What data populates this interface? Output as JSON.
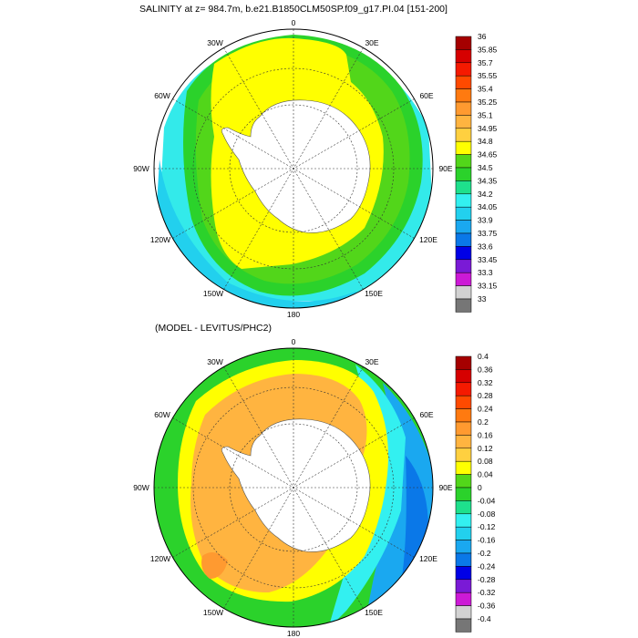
{
  "panels": [
    {
      "title": "SALINITY at z= 984.7m, b.e21.B1850CLM50SP.f09_g17.PI.04 [151-200]",
      "lon_labels": [
        "0",
        "30E",
        "60E",
        "90E",
        "120E",
        "150E",
        "180",
        "150W",
        "120W",
        "90W",
        "60W",
        "30W"
      ],
      "colorbar": {
        "labels": [
          "36",
          "35.85",
          "35.7",
          "35.55",
          "35.4",
          "35.25",
          "35.1",
          "34.95",
          "34.8",
          "34.65",
          "34.5",
          "34.35",
          "34.2",
          "34.05",
          "33.9",
          "33.75",
          "33.6",
          "33.45",
          "33.3",
          "33.15",
          "33"
        ],
        "colors": [
          "#a50000",
          "#d60000",
          "#f51a00",
          "#ff4a00",
          "#ff7a10",
          "#ff9a30",
          "#ffb440",
          "#ffd040",
          "#ffff00",
          "#52d61a",
          "#2bd22b",
          "#1ee08c",
          "#33f0f0",
          "#22d0ee",
          "#1aa8f0",
          "#0a78e8",
          "#0000e6",
          "#7a1ad6",
          "#cc1ad6",
          "#d2d2d2",
          "#767676"
        ]
      }
    },
    {
      "title": "(MODEL - LEVITUS/PHC2)",
      "lon_labels": [
        "0",
        "30E",
        "60E",
        "90E",
        "120E",
        "150E",
        "180",
        "150W",
        "120W",
        "90W",
        "60W",
        "30W"
      ],
      "colorbar": {
        "labels": [
          "0.4",
          "0.36",
          "0.32",
          "0.28",
          "0.24",
          "0.2",
          "0.16",
          "0.12",
          "0.08",
          "0.04",
          "0",
          "-0.04",
          "-0.08",
          "-0.12",
          "-0.16",
          "-0.2",
          "-0.24",
          "-0.28",
          "-0.32",
          "-0.36",
          "-0.4"
        ],
        "colors": [
          "#a50000",
          "#d60000",
          "#f51a00",
          "#ff4a00",
          "#ff7a10",
          "#ff9a30",
          "#ffb440",
          "#ffd040",
          "#ffff00",
          "#52d61a",
          "#2bd22b",
          "#1ee08c",
          "#33f0f0",
          "#22d0ee",
          "#1aa8f0",
          "#0a78e8",
          "#0000e6",
          "#7a1ad6",
          "#cc1ad6",
          "#d2d2d2",
          "#767676"
        ]
      }
    }
  ]
}
